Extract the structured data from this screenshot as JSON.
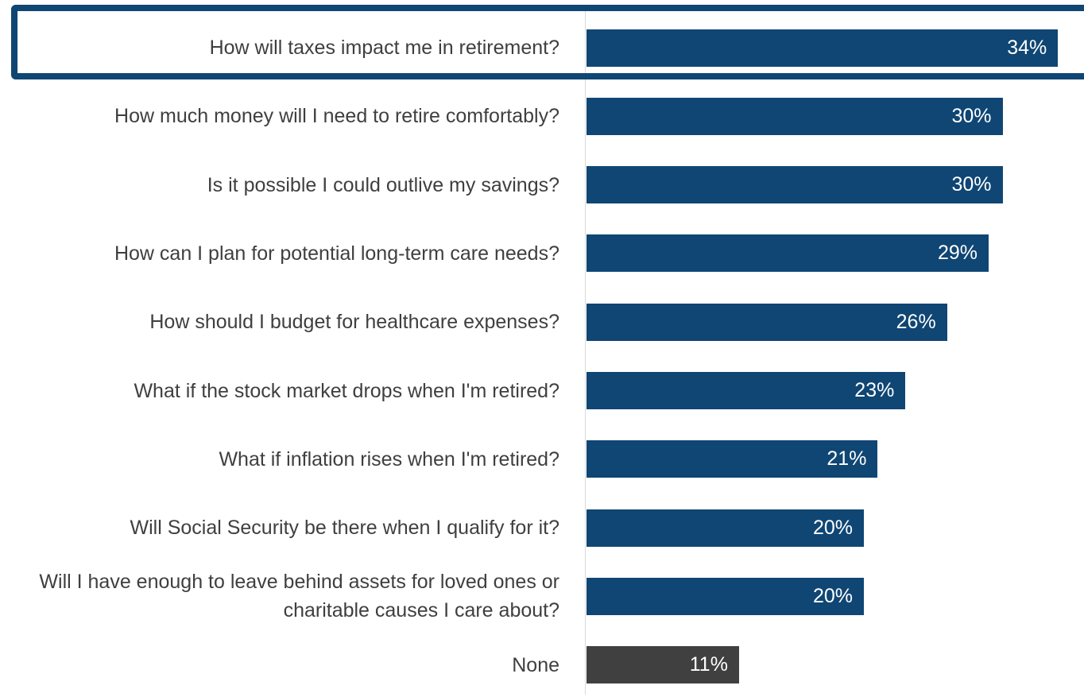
{
  "chart_data": {
    "type": "bar",
    "orientation": "horizontal",
    "categories": [
      "How will taxes impact me in retirement?",
      "How much money will I need to retire comfortably?",
      "Is it possible I could outlive my savings?",
      "How can I plan for potential long-term care needs?",
      "How should I budget for healthcare expenses?",
      "What if the stock market drops when I'm retired?",
      "What if inflation rises when I'm retired?",
      "Will Social Security be there when I qualify for it?",
      "Will I have enough to leave behind assets for loved ones or charitable causes I care about?",
      "None"
    ],
    "values": [
      34,
      30,
      30,
      29,
      26,
      23,
      21,
      20,
      20,
      11
    ],
    "value_labels": [
      "34%",
      "30%",
      "30%",
      "29%",
      "26%",
      "23%",
      "21%",
      "20%",
      "20%",
      "11%"
    ],
    "bar_colors": [
      "#0f4674",
      "#0f4674",
      "#0f4674",
      "#0f4674",
      "#0f4674",
      "#0f4674",
      "#0f4674",
      "#0f4674",
      "#0f4674",
      "#404040"
    ],
    "highlighted_category": "How will taxes impact me in retirement?",
    "highlight_color": "#0f4674",
    "title": "",
    "xlabel": "",
    "ylabel": "",
    "xlim": [
      0,
      35
    ],
    "grid": false,
    "legend": "none"
  }
}
